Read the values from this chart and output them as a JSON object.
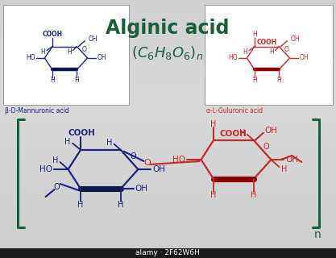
{
  "title": "Alginic acid",
  "formula": "(C₆H₈O₆)ₙ",
  "title_color": "#1b5e3b",
  "blue": "#1a237e",
  "dark_blue": "#0d1545",
  "red": "#c62828",
  "dark_red": "#8b0000",
  "label_blue": "β-D-Mannuronic acid",
  "label_red": "α-L-Guluronic acid",
  "watermark": "alamy · 2F62W6H",
  "bracket_color": "#1b5e3b"
}
